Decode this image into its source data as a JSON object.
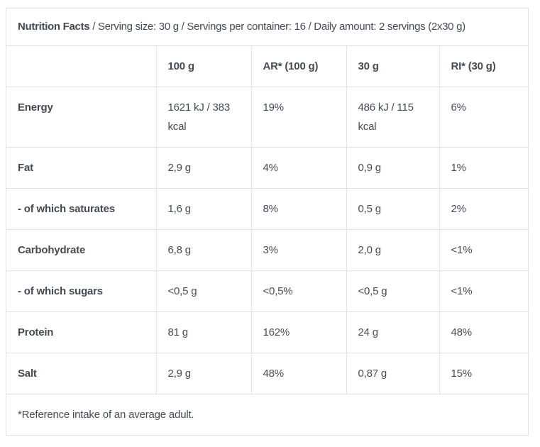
{
  "theme": {
    "background": "#ffffff",
    "border_color": "#e2e2e2",
    "text_color": "#454b54"
  },
  "header": {
    "title": "Nutrition Facts",
    "details": " / Serving size: 30 g / Servings per container: 16 / Daily amount: 2 servings (2x30 g)"
  },
  "table": {
    "columns": [
      "",
      "100 g",
      "AR* (100 g)",
      "30 g",
      "RI* (30 g)"
    ],
    "rows": [
      [
        "Energy",
        "1621 kJ / 383 kcal",
        "19%",
        "486 kJ / 115 kcal",
        "6%"
      ],
      [
        "Fat",
        "2,9 g",
        "4%",
        "0,9 g",
        "1%"
      ],
      [
        "- of which saturates",
        "1,6 g",
        "8%",
        "0,5 g",
        "2%"
      ],
      [
        "Carbohydrate",
        "6,8 g",
        "3%",
        "2,0 g",
        "<1%"
      ],
      [
        "- of which sugars",
        "<0,5 g",
        "<0,5%",
        "<0,5 g",
        "<1%"
      ],
      [
        "Protein",
        "81 g",
        "162%",
        "24 g",
        "48%"
      ],
      [
        "Salt",
        "2,9 g",
        "48%",
        "0,87 g",
        "15%"
      ]
    ],
    "footnote": "*Reference intake of an average adult."
  }
}
